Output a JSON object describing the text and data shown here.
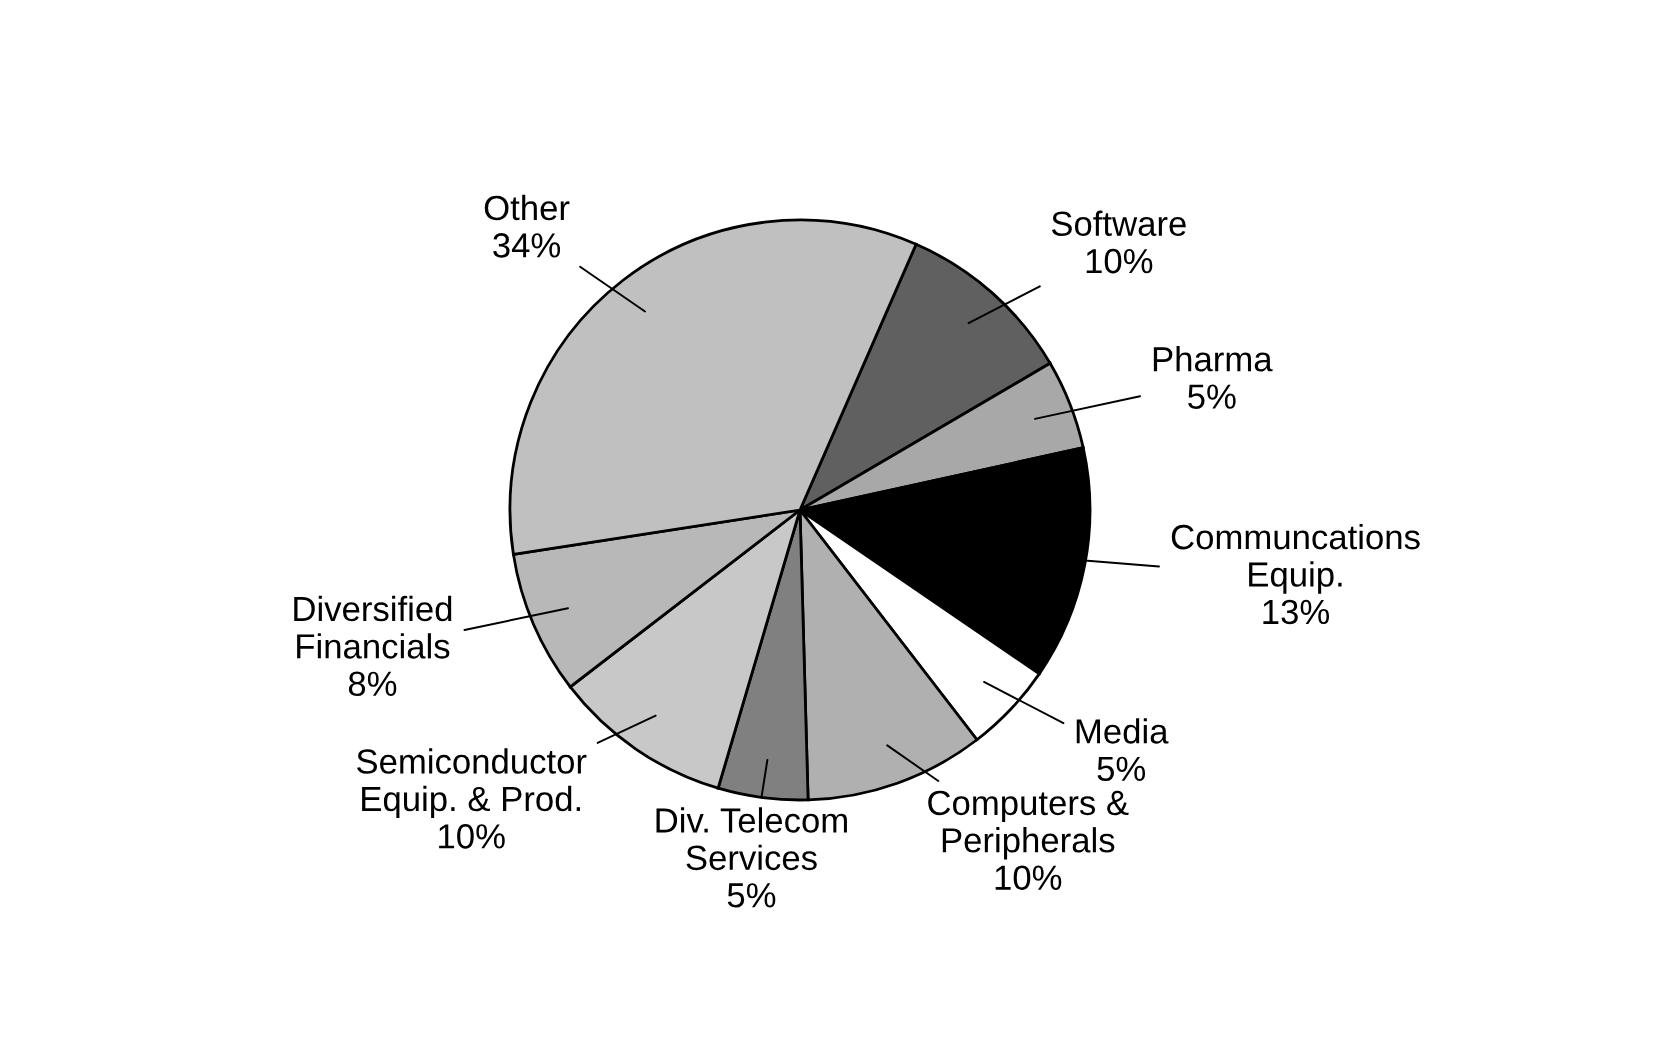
{
  "chart_data": {
    "type": "pie",
    "categories": [
      "Software",
      "Pharma",
      "Communcations Equip.",
      "Media",
      "Computers & Peripherals",
      "Div. Telecom Services",
      "Semiconductor Equip. & Prod.",
      "Diversified Financials",
      "Other"
    ],
    "values": [
      10,
      5,
      13,
      5,
      10,
      5,
      10,
      8,
      34
    ],
    "value_labels": [
      "10%",
      "5%",
      "13%",
      "5%",
      "10%",
      "5%",
      "10%",
      "8%",
      "34%"
    ],
    "colors": [
      "#606060",
      "#a8a8a8",
      "#000000",
      "#ffffff",
      "#b0b0b0",
      "#808080",
      "#c8c8c8",
      "#b8b8b8",
      "#c0c0c0"
    ],
    "legend": false
  }
}
